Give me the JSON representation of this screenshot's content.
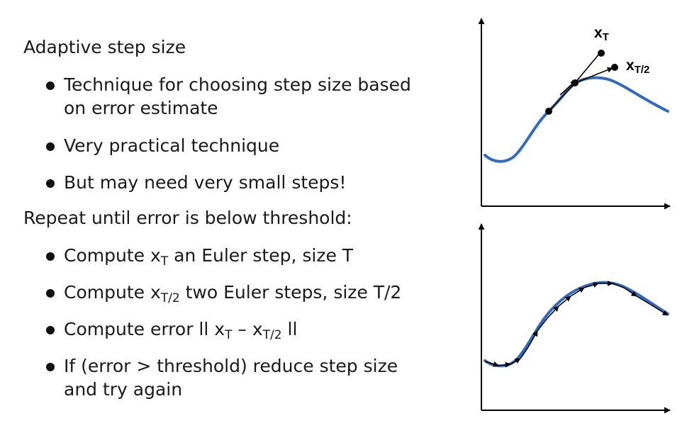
{
  "heading1": "Adaptive step size",
  "bullets1": [
    {
      "line1": "Technique for choosing step size based",
      "line2": "on error estimate"
    },
    {
      "line1": "Very practical technique"
    },
    {
      "line1": "But may need very small steps!"
    }
  ],
  "heading2": "Repeat until error is below threshold:",
  "bullets2": {
    "b1": {
      "pre": "Compute x",
      "sub": "T",
      "post": " an Euler step, size T"
    },
    "b2": {
      "pre": "Compute x",
      "sub": "T/2",
      "post": " two Euler steps, size T/2"
    },
    "b3": {
      "pre": "Compute error ll x",
      "sub1": "T",
      "mid": " – x",
      "sub2": "T/2",
      "post": " ll"
    },
    "b4": {
      "line1": "If (error > threshold) reduce step size",
      "line2": "and try again"
    }
  },
  "diagram_top": {
    "label_xT": "x",
    "label_xT_sub": "T",
    "label_xT2": "x",
    "label_xT2_sub": "T/2"
  },
  "colors": {
    "curve": "#2f6bc4",
    "ink": "#000000"
  }
}
